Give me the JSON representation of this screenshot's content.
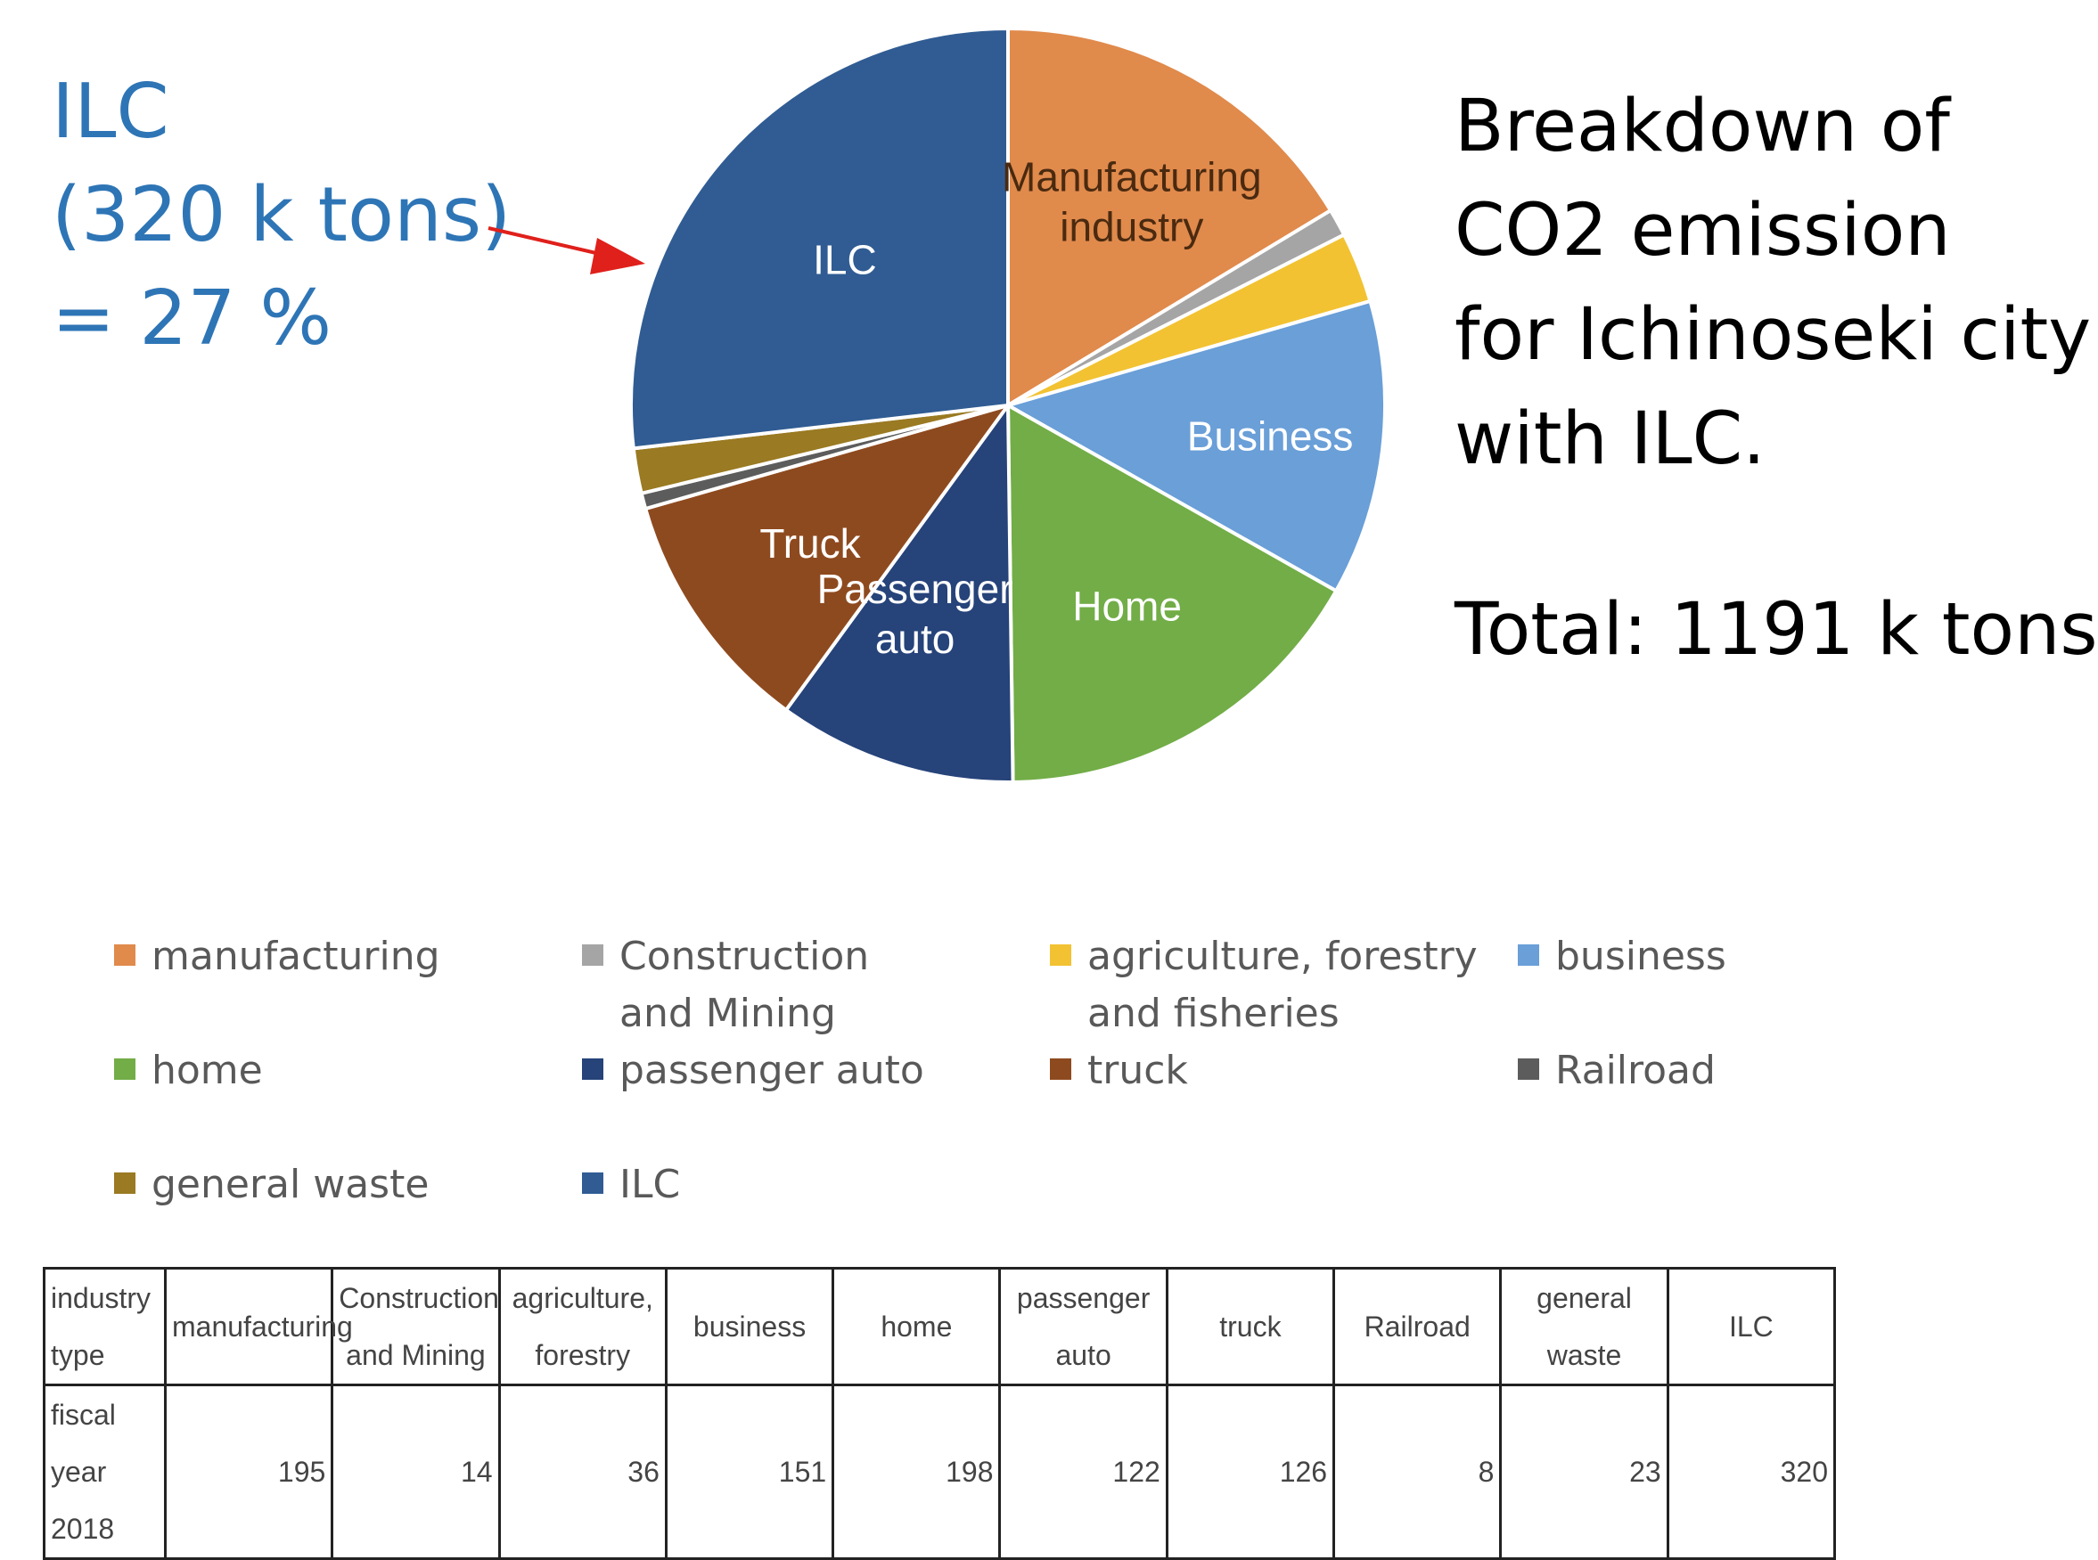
{
  "callout": {
    "lines": [
      "ILC",
      "(320 k tons)",
      "= 27 %"
    ],
    "color": "#2e75b6",
    "arrow_color": "#e0201b"
  },
  "title": {
    "lines": [
      "Breakdown of",
      "CO2 emission",
      "for Ichinoseki city",
      "with ILC."
    ],
    "total": "Total: 1191 k tons"
  },
  "chart_data": {
    "type": "pie",
    "unit": "k tons",
    "start_angle_deg": 0,
    "direction": "clockwise",
    "slices": [
      {
        "name": "manufacturing",
        "value": 195,
        "color": "#e08a4c",
        "label_lines": [
          "Manufacturing",
          "industry"
        ]
      },
      {
        "name": "Construction and Mining",
        "value": 14,
        "color": "#a5a5a5",
        "label_lines": []
      },
      {
        "name": "agriculture, forestry and fisheries",
        "value": 36,
        "color": "#f2c233",
        "label_lines": []
      },
      {
        "name": "business",
        "value": 151,
        "color": "#6a9fd8",
        "label_lines": [
          "Business"
        ]
      },
      {
        "name": "home",
        "value": 198,
        "color": "#72ad47",
        "label_lines": [
          "Home"
        ]
      },
      {
        "name": "passenger auto",
        "value": 122,
        "color": "#26437a",
        "label_lines": [
          "Passenger",
          "auto"
        ]
      },
      {
        "name": "truck",
        "value": 126,
        "color": "#8e4a1f",
        "label_lines": [
          "Truck"
        ]
      },
      {
        "name": "Railroad",
        "value": 8,
        "color": "#5c5c5c",
        "label_lines": []
      },
      {
        "name": "general waste",
        "value": 23,
        "color": "#9a7a22",
        "label_lines": []
      },
      {
        "name": "ILC",
        "value": 320,
        "color": "#305c93",
        "label_lines": [
          "ILC"
        ]
      }
    ],
    "legend": [
      {
        "lines": [
          "manufacturing"
        ],
        "color": "#e08a4c"
      },
      {
        "lines": [
          "Construction",
          "and Mining"
        ],
        "color": "#a5a5a5"
      },
      {
        "lines": [
          "agriculture, forestry",
          "and fisheries"
        ],
        "color": "#f2c233"
      },
      {
        "lines": [
          "business"
        ],
        "color": "#6a9fd8"
      },
      {
        "lines": [
          "home"
        ],
        "color": "#72ad47"
      },
      {
        "lines": [
          "passenger auto"
        ],
        "color": "#26437a"
      },
      {
        "lines": [
          "truck"
        ],
        "color": "#8e4a1f"
      },
      {
        "lines": [
          "Railroad"
        ],
        "color": "#5c5c5c"
      },
      {
        "lines": [
          "general waste"
        ],
        "color": "#9a7a22"
      },
      {
        "lines": [
          "ILC"
        ],
        "color": "#305c93"
      }
    ],
    "legend_placement": "bottom"
  },
  "table": {
    "header_label": [
      "industry",
      "type"
    ],
    "row_label": [
      "fiscal year",
      "2018"
    ],
    "columns": [
      {
        "lines": [
          "manufacturing"
        ],
        "value": "195"
      },
      {
        "lines": [
          "Construction",
          "and Mining"
        ],
        "value": "14"
      },
      {
        "lines": [
          "agriculture,",
          "forestry"
        ],
        "value": "36"
      },
      {
        "lines": [
          "business"
        ],
        "value": "151"
      },
      {
        "lines": [
          "home"
        ],
        "value": "198"
      },
      {
        "lines": [
          "passenger auto"
        ],
        "value": "122"
      },
      {
        "lines": [
          "truck"
        ],
        "value": "126"
      },
      {
        "lines": [
          "Railroad"
        ],
        "value": "8"
      },
      {
        "lines": [
          "general waste"
        ],
        "value": "23"
      },
      {
        "lines": [
          "ILC"
        ],
        "value": "320"
      }
    ]
  }
}
